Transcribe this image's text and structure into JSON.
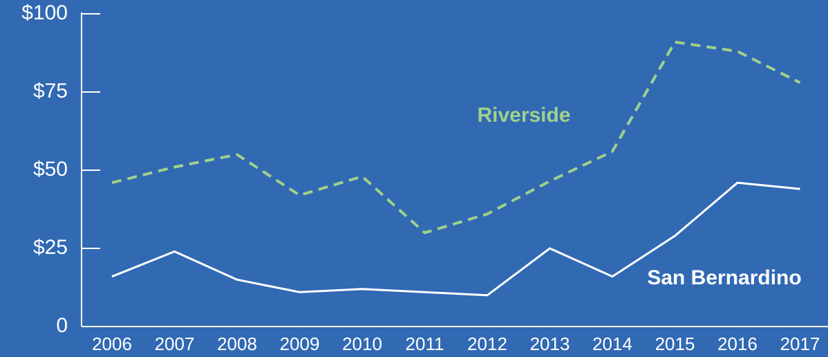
{
  "chart_data": {
    "type": "line",
    "categories": [
      "2006",
      "2007",
      "2008",
      "2009",
      "2010",
      "2011",
      "2012",
      "2013",
      "2014",
      "2015",
      "2016",
      "2017"
    ],
    "series": [
      {
        "name": "Riverside",
        "color": "#9fd18b",
        "dash": true,
        "values": [
          46,
          51,
          55,
          42,
          48,
          30,
          36,
          46.5,
          56,
          91,
          88,
          78
        ]
      },
      {
        "name": "San Bernardino",
        "color": "#ffffff",
        "dash": false,
        "values": [
          16,
          24,
          15,
          11,
          12,
          11,
          10,
          25,
          16,
          29,
          46,
          44
        ]
      }
    ],
    "ylim": [
      0,
      100
    ],
    "yticks": [
      0,
      {
        "value": 25,
        "label": "$25"
      },
      {
        "value": 50,
        "label": "$50"
      },
      {
        "value": 75,
        "label": "$75"
      },
      {
        "value": 100,
        "label": "$100"
      }
    ]
  }
}
